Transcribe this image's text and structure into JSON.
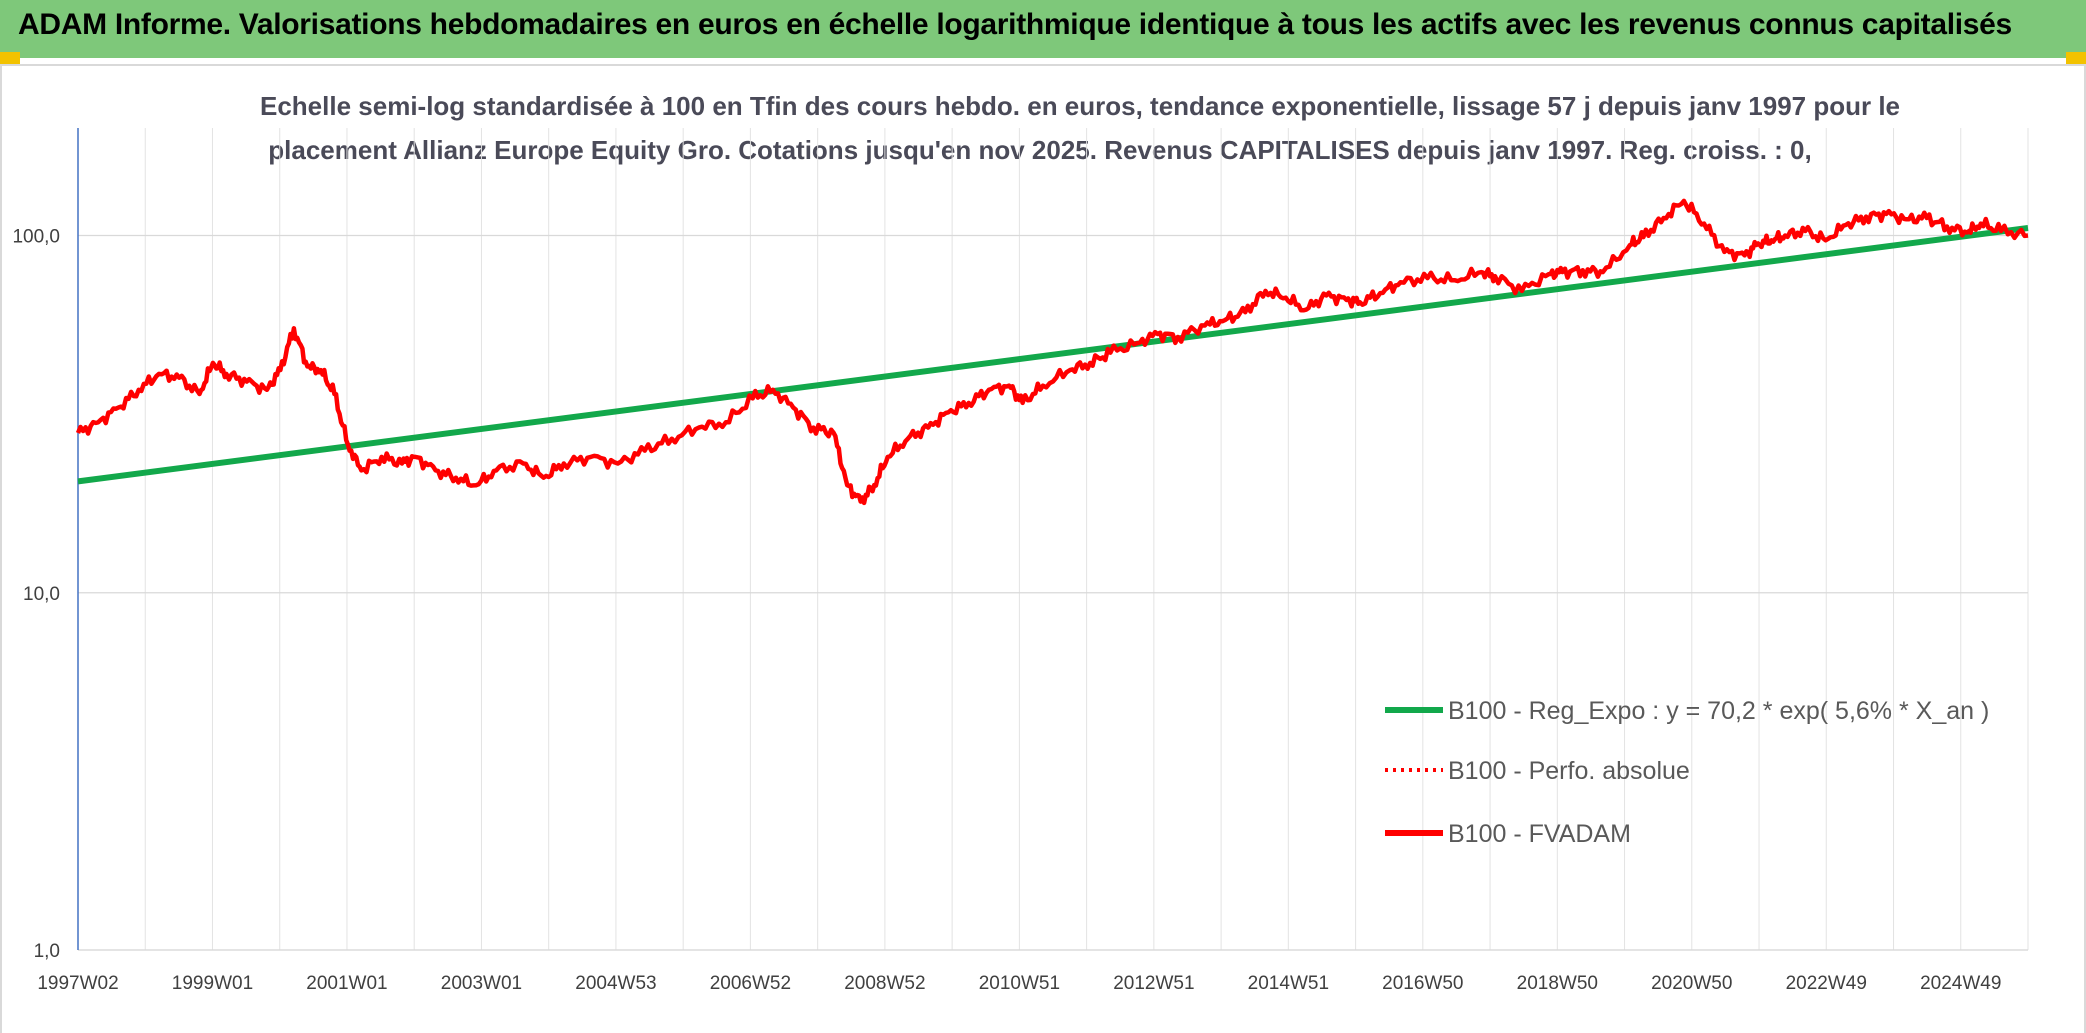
{
  "header": {
    "title": "ADAM Informe. Valorisations hebdomadaires en euros en échelle logarithmique identique à tous les actifs avec les revenus connus capitalisés"
  },
  "colors": {
    "header_bg": "#7ec87a",
    "trend": "#12a84b",
    "fvadam": "#ff0000",
    "perfo": "#ff0000",
    "corner": "#f2c200"
  },
  "chart_data": {
    "type": "line",
    "title_line1": "Echelle semi-log standardisée à 100 en Tfin des cours hebdo. en euros, tendance exponentielle, lissage 57 j depuis janv 1997 pour le",
    "title_line2": "placement Allianz Europe Equity Gro. Cotations jusqu'en nov 2025. Revenus CAPITALISES depuis janv 1997. Reg. croiss. : 0,",
    "y_scale": "log",
    "ylim": [
      1,
      200
    ],
    "y_ticks": [
      {
        "value": 1,
        "label": "1,0"
      },
      {
        "value": 10,
        "label": "10,0"
      },
      {
        "value": 100,
        "label": "100,0"
      }
    ],
    "xlim": [
      1997.0,
      2025.9
    ],
    "x_tick_labels": [
      "1997W02",
      "1999W01",
      "2001W01",
      "2003W01",
      "2004W53",
      "2006W52",
      "2008W52",
      "2010W51",
      "2012W51",
      "2014W51",
      "2016W50",
      "2018W50",
      "2020W50",
      "2022W49",
      "2024W49"
    ],
    "grid": "vertical and horizontal",
    "legend_position": "bottom-right",
    "series": [
      {
        "name": "B100 - Reg_Expo : y = 70,2 * exp( 5,6% *  X_an )",
        "style": "solid-thick-green",
        "x": [
          1997.0,
          2025.9
        ],
        "y": [
          20.5,
          105
        ]
      },
      {
        "name": "B100 - Perfo. absolue",
        "style": "dotted-red",
        "x": [],
        "y": []
      },
      {
        "name": "B100 - FVADAM",
        "style": "solid-thick-red",
        "x": [
          1997.0,
          1997.3,
          1997.6,
          1997.9,
          1998.2,
          1998.5,
          1998.8,
          1999.0,
          1999.2,
          1999.5,
          1999.8,
          2000.0,
          2000.2,
          2000.4,
          2000.6,
          2000.8,
          2001.0,
          2001.2,
          2001.5,
          2001.8,
          2002.0,
          2002.3,
          2002.6,
          2002.9,
          2003.2,
          2003.6,
          2003.9,
          2004.2,
          2004.6,
          2005.0,
          2005.4,
          2005.8,
          2006.2,
          2006.6,
          2007.0,
          2007.3,
          2007.6,
          2007.9,
          2008.2,
          2008.4,
          2008.6,
          2008.8,
          2009.0,
          2009.3,
          2009.6,
          2009.9,
          2010.2,
          2010.5,
          2010.8,
          2011.0,
          2011.3,
          2011.7,
          2012.0,
          2012.3,
          2012.7,
          2013.0,
          2013.3,
          2013.7,
          2014.0,
          2014.3,
          2014.6,
          2014.9,
          2015.2,
          2015.5,
          2015.8,
          2016.0,
          2016.3,
          2016.6,
          2017.0,
          2017.4,
          2017.8,
          2018.0,
          2018.4,
          2018.8,
          2019.0,
          2019.3,
          2019.6,
          2020.0,
          2020.2,
          2020.5,
          2020.8,
          2021.1,
          2021.4,
          2021.7,
          2021.9,
          2022.1,
          2022.3,
          2022.6,
          2022.9,
          2023.2,
          2023.5,
          2023.8,
          2024.1,
          2024.4,
          2024.7,
          2025.0,
          2025.2,
          2025.5,
          2025.9
        ],
        "y": [
          28,
          30,
          33,
          37,
          41,
          40,
          36,
          44,
          41,
          39,
          37,
          42,
          55,
          43,
          42,
          36,
          26,
          22,
          24,
          23,
          24,
          22,
          21,
          20,
          22,
          23,
          21,
          23,
          24,
          23,
          25,
          27,
          29,
          30,
          35,
          37,
          33,
          29,
          28,
          20,
          18,
          20,
          24,
          27,
          29,
          32,
          34,
          37,
          38,
          34,
          38,
          42,
          44,
          47,
          50,
          53,
          52,
          56,
          58,
          61,
          70,
          67,
          62,
          68,
          66,
          65,
          69,
          74,
          76,
          75,
          79,
          77,
          70,
          78,
          79,
          80,
          79,
          94,
          99,
          112,
          125,
          108,
          90,
          88,
          95,
          97,
          100,
          103,
          97,
          107,
          113,
          115,
          111,
          112,
          106,
          102,
          108,
          103,
          100
        ]
      }
    ]
  }
}
